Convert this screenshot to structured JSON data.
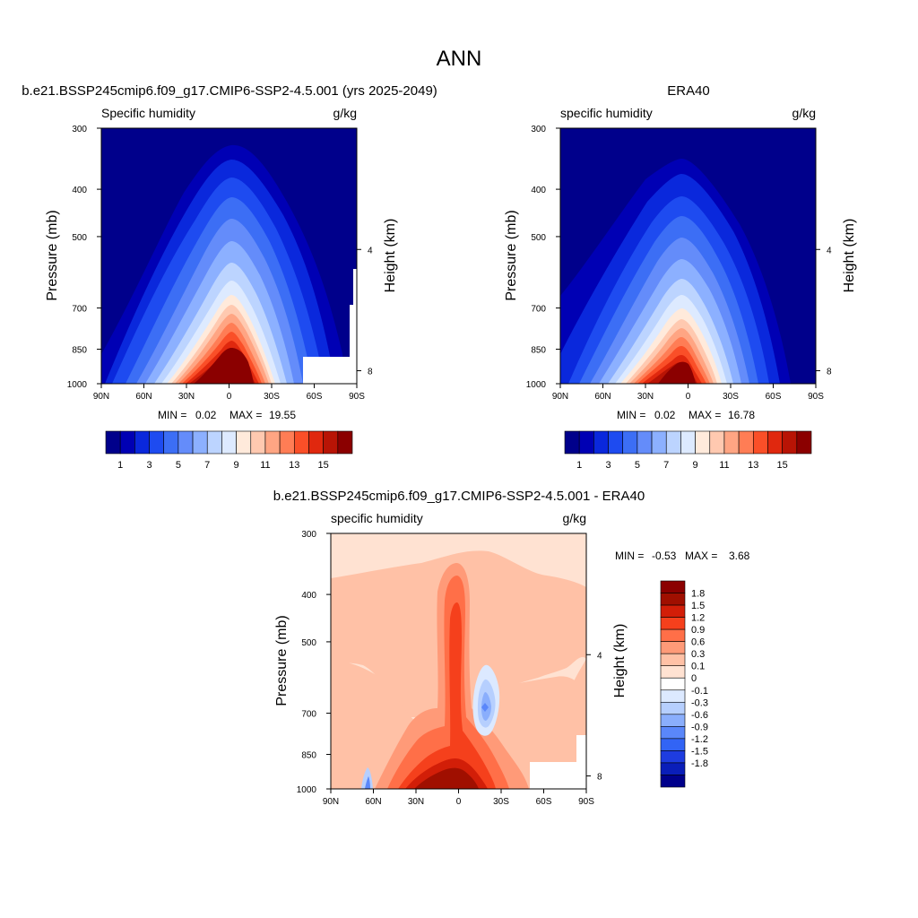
{
  "figure": {
    "title": "ANN"
  },
  "colors": {
    "sequential": [
      "#00008b",
      "#0000b4",
      "#0a28dc",
      "#1e4bf0",
      "#3c6ef5",
      "#648cfa",
      "#8cb0ff",
      "#bcd4ff",
      "#ddeaff",
      "#ffeadb",
      "#ffc9b0",
      "#ffa583",
      "#ff7d55",
      "#fa4f28",
      "#e0280e",
      "#b81405",
      "#8b0000"
    ],
    "diverging": [
      "#00008b",
      "#0a1eb9",
      "#1e3ce0",
      "#3264f5",
      "#5a87fa",
      "#8aaefc",
      "#b6cffe",
      "#dce9ff",
      "#ffffff",
      "#ffe2d2",
      "#ffc1a6",
      "#ff9a78",
      "#ff6f48",
      "#f5401c",
      "#d21e08",
      "#a00f00",
      "#8b0000"
    ]
  },
  "chart_data": [
    {
      "type": "heatmap",
      "panel": "model",
      "case_title": "b.e21.BSSP245cmip6.f09_g17.CMIP6-SSP2-4.5.001 (yrs 2025-2049)",
      "left_label": "Specific humidity",
      "right_label": "g/kg",
      "ylabel": "Pressure (mb)",
      "ylabel_right": "Height (km)",
      "x_ticks": [
        "90N",
        "60N",
        "30N",
        "0",
        "30S",
        "60S",
        "90S"
      ],
      "y_ticks": [
        "300",
        "400",
        "500",
        "700",
        "850",
        "1000"
      ],
      "y_ticks_right": [
        "8",
        "4"
      ],
      "stats": {
        "min_label": "MIN =",
        "min": "0.02",
        "max_label": "MAX =",
        "max": "19.55"
      },
      "colorbar": {
        "orientation": "horizontal",
        "levels": [
          1,
          2,
          3,
          4,
          5,
          6,
          7,
          8,
          9,
          10,
          11,
          12,
          13,
          14,
          15,
          16
        ],
        "labels": [
          "1",
          "3",
          "5",
          "7",
          "9",
          "11",
          "13",
          "15"
        ]
      }
    },
    {
      "type": "heatmap",
      "panel": "obs",
      "case_title": "ERA40",
      "left_label": "specific humidity",
      "right_label": "g/kg",
      "ylabel": "Pressure (mb)",
      "ylabel_right": "Height (km)",
      "x_ticks": [
        "90N",
        "60N",
        "30N",
        "0",
        "30S",
        "60S",
        "90S"
      ],
      "y_ticks": [
        "300",
        "400",
        "500",
        "700",
        "850",
        "1000"
      ],
      "y_ticks_right": [
        "8",
        "4"
      ],
      "stats": {
        "min_label": "MIN =",
        "min": "0.02",
        "max_label": "MAX =",
        "max": "16.78"
      },
      "colorbar": {
        "orientation": "horizontal",
        "levels": [
          1,
          2,
          3,
          4,
          5,
          6,
          7,
          8,
          9,
          10,
          11,
          12,
          13,
          14,
          15,
          16
        ],
        "labels": [
          "1",
          "3",
          "5",
          "7",
          "9",
          "11",
          "13",
          "15"
        ]
      }
    },
    {
      "type": "heatmap",
      "panel": "diff",
      "case_title": "b.e21.BSSP245cmip6.f09_g17.CMIP6-SSP2-4.5.001 - ERA40",
      "left_label": "specific humidity",
      "right_label": "g/kg",
      "ylabel": "Pressure (mb)",
      "ylabel_right": "Height (km)",
      "x_ticks": [
        "90N",
        "60N",
        "30N",
        "0",
        "30S",
        "60S",
        "90S"
      ],
      "y_ticks": [
        "300",
        "400",
        "500",
        "700",
        "850",
        "1000"
      ],
      "y_ticks_right": [
        "8",
        "4"
      ],
      "stats": {
        "min_label": "MIN =",
        "min": "-0.53",
        "max_label": "MAX =",
        "max": "3.68"
      },
      "colorbar": {
        "orientation": "vertical",
        "levels": [
          -1.8,
          -1.5,
          -1.2,
          -0.9,
          -0.6,
          -0.3,
          -0.1,
          0,
          0.1,
          0.3,
          0.6,
          0.9,
          1.2,
          1.5,
          1.8
        ],
        "labels": [
          "1.8",
          "1.5",
          "1.2",
          "0.9",
          "0.6",
          "0.3",
          "0.1",
          "0",
          "-0.1",
          "-0.3",
          "-0.6",
          "-0.9",
          "-1.2",
          "-1.5",
          "-1.8"
        ]
      }
    }
  ]
}
